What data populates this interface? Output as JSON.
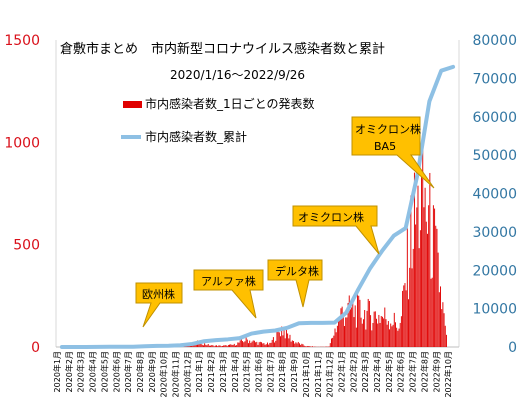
{
  "chart_data": {
    "type": "bar+line",
    "title": "倉敷市まとめ　市内新型コロナウイルス感染者数と累計",
    "subtitle": "2020/1/16〜2022/9/26",
    "y_left": {
      "ticks": [
        0,
        500,
        1000,
        1500
      ],
      "ylim": [
        0,
        1500
      ],
      "color": "#d9101a"
    },
    "y_right": {
      "ticks": [
        0,
        10000,
        20000,
        30000,
        40000,
        50000,
        60000,
        70000,
        80000
      ],
      "ylim": [
        0,
        80000
      ],
      "color": "#3377a3"
    },
    "x_ticks": [
      "2020年1月",
      "2020年2月",
      "2020年3月",
      "2020年4月",
      "2020年5月",
      "2020年6月",
      "2020年7月",
      "2020年8月",
      "2020年9月",
      "2020年10月",
      "2020年11月",
      "2020年12月",
      "2021年1月",
      "2021年2月",
      "2021年3月",
      "2021年4月",
      "2021年5月",
      "2021年6月",
      "2021年7月",
      "2021年8月",
      "2021年9月",
      "2021年10月",
      "2021年11月",
      "2021年12月",
      "2022年1月",
      "2022年2月",
      "2022年3月",
      "2022年4月",
      "2022年5月",
      "2022年6月",
      "2022年7月",
      "2022年8月",
      "2022年9月",
      "2022年10月"
    ],
    "series": [
      {
        "name": "市内感染者数_1日ごとの発表数",
        "type": "bar",
        "color": "#e00000",
        "monthly_level": [
          0,
          0,
          1,
          2,
          1,
          0,
          3,
          6,
          3,
          1,
          6,
          12,
          25,
          8,
          6,
          12,
          40,
          22,
          15,
          100,
          30,
          5,
          1,
          2,
          180,
          200,
          180,
          170,
          160,
          110,
          650,
          800,
          500,
          0
        ]
      },
      {
        "name": "市内感染者数_累計",
        "type": "line",
        "color": "#8ec0e4",
        "monthly_cumulative": [
          0,
          0,
          10,
          40,
          50,
          50,
          60,
          200,
          300,
          330,
          450,
          800,
          1500,
          1800,
          2000,
          2300,
          3500,
          4000,
          4300,
          5000,
          6200,
          6300,
          6300,
          6350,
          9000,
          15000,
          20500,
          25000,
          29000,
          31000,
          45000,
          64000,
          72000,
          73000
        ]
      }
    ],
    "annotations": [
      "欧州株",
      "アルファ株",
      "デルタ株",
      "オミクロン株",
      "オミクロン株",
      "BA5"
    ]
  }
}
